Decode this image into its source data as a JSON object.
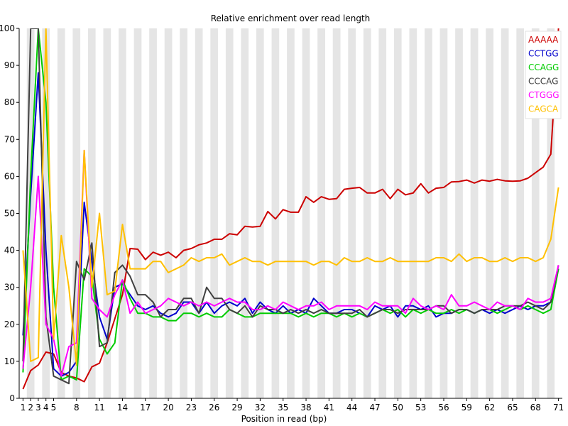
{
  "chart_data": {
    "type": "line",
    "title": "Relative enrichment over read length",
    "xlabel": "Position in read (bp)",
    "ylabel": "",
    "ylim": [
      0,
      100
    ],
    "y_ticks": [
      0,
      10,
      20,
      30,
      40,
      50,
      60,
      70,
      80,
      90,
      100
    ],
    "x_tick_labels": [
      "1",
      "2",
      "3",
      "4",
      "5",
      "8",
      "11",
      "14",
      "17",
      "20",
      "23",
      "26",
      "29",
      "32",
      "35",
      "38",
      "41",
      "44",
      "47",
      "50",
      "53",
      "56",
      "59",
      "62",
      "65",
      "68",
      "71"
    ],
    "x": [
      "1",
      "2",
      "3",
      "4",
      "5",
      "6",
      "7",
      "8",
      "9",
      "10",
      "11",
      "12",
      "13",
      "14",
      "15",
      "16",
      "17",
      "18",
      "19",
      "20",
      "21",
      "22",
      "23",
      "24",
      "25",
      "26",
      "27",
      "28",
      "29",
      "30",
      "31",
      "32",
      "33",
      "34",
      "35",
      "36",
      "37",
      "38",
      "39",
      "40",
      "41",
      "42",
      "43",
      "44",
      "45",
      "46",
      "47",
      "48",
      "49",
      "50",
      "51",
      "52",
      "53",
      "54",
      "55",
      "56",
      "57",
      "58",
      "59",
      "60",
      "61",
      "62",
      "63",
      "64",
      "65",
      "66",
      "67",
      "68",
      "69",
      "70",
      "71"
    ],
    "grid": "alternating vertical bands",
    "legend_position": "top-right",
    "series": [
      {
        "name": "AAAAA",
        "color": "#cc0000",
        "values": [
          2.5,
          7.5,
          9,
          12.5,
          12,
          7,
          6,
          5.5,
          4.5,
          8.5,
          9.5,
          15,
          21.5,
          28,
          40.5,
          40.3,
          37.5,
          39.5,
          38.7,
          39.5,
          38,
          40,
          40.5,
          41.5,
          42,
          43,
          43,
          44.5,
          44.2,
          46.5,
          46.3,
          46.5,
          50.5,
          48.5,
          51,
          50.3,
          50.3,
          54.5,
          53,
          54.5,
          53.8,
          54,
          56.5,
          56.8,
          57,
          55.5,
          55.5,
          56.5,
          54,
          56.5,
          55,
          55.5,
          58,
          55.5,
          56.8,
          57,
          58.5,
          58.6,
          59,
          58.2,
          59,
          58.7,
          59.2,
          58.8,
          58.7,
          58.8,
          59.5,
          61,
          62.5,
          66,
          100
        ]
      },
      {
        "name": "CCTGG",
        "color": "#0000cc",
        "values": [
          17,
          55,
          88,
          40,
          8,
          6,
          7,
          10,
          53,
          37,
          22,
          16,
          30,
          31,
          28,
          25,
          24,
          25,
          23,
          22,
          23,
          26,
          26,
          23,
          26,
          23,
          25,
          26,
          25,
          27,
          23,
          26,
          24,
          23,
          25,
          23,
          24,
          23,
          27,
          25,
          23,
          23,
          24,
          24,
          23,
          22,
          25,
          24,
          25,
          22,
          25,
          25,
          24,
          25,
          22,
          23,
          23,
          24,
          24,
          23,
          24,
          23,
          24,
          23,
          24,
          25,
          24,
          25,
          25,
          26,
          35
        ]
      },
      {
        "name": "CCAGG",
        "color": "#00cc00",
        "values": [
          7,
          60,
          100,
          80,
          30,
          5,
          6,
          5,
          35,
          33,
          16,
          12,
          15,
          32,
          27,
          23,
          23,
          22,
          22,
          21,
          21,
          23,
          23,
          22,
          23,
          22,
          22,
          24,
          23,
          22,
          22,
          23,
          23,
          23,
          23,
          23,
          22,
          23,
          22,
          23,
          23,
          22,
          23,
          22,
          23,
          22,
          23,
          24,
          23,
          24,
          22,
          24,
          23,
          24,
          23,
          23,
          24,
          23,
          24,
          23,
          24,
          24,
          23,
          24,
          25,
          24,
          25,
          24,
          23,
          24,
          35
        ]
      },
      {
        "name": "CCCAG",
        "color": "#404040",
        "values": [
          10,
          100,
          100,
          22,
          6,
          5,
          4,
          37,
          32,
          42,
          14,
          15,
          34,
          36,
          33,
          28,
          28,
          26,
          22,
          24,
          24,
          27,
          27,
          23,
          30,
          27,
          27,
          24,
          23,
          25,
          22,
          25,
          24,
          24,
          23,
          24,
          23,
          24,
          23,
          24,
          23,
          23,
          23,
          23,
          24,
          22,
          23,
          24,
          24,
          23,
          24,
          24,
          24,
          24,
          25,
          25,
          23,
          24,
          24,
          23,
          24,
          24,
          24,
          25,
          25,
          25,
          26,
          25,
          24,
          26,
          36
        ]
      },
      {
        "name": "CTGGG",
        "color": "#ff00ff",
        "values": [
          8,
          30,
          60,
          20,
          16,
          6,
          14,
          15,
          67,
          27,
          24,
          22,
          28,
          32,
          23,
          26,
          23,
          24,
          25,
          27,
          26,
          25,
          26,
          25,
          26,
          25,
          26,
          27,
          26,
          26,
          24,
          24,
          25,
          24,
          26,
          25,
          24,
          25,
          25,
          26,
          24,
          25,
          25,
          25,
          25,
          24,
          26,
          25,
          25,
          25,
          23,
          27,
          25,
          24,
          25,
          24,
          28,
          25,
          25,
          26,
          25,
          24,
          26,
          25,
          25,
          24,
          27,
          26,
          26,
          27,
          36
        ]
      },
      {
        "name": "CAGCA",
        "color": "#ffc000",
        "values": [
          40,
          10,
          11,
          100,
          16,
          44,
          30,
          9,
          67,
          30,
          50,
          28,
          29,
          47,
          35,
          35,
          35,
          37,
          37,
          34,
          35,
          36,
          38,
          37,
          38,
          38,
          39,
          36,
          37,
          38,
          37,
          37,
          36,
          37,
          37,
          37,
          37,
          37,
          36,
          37,
          37,
          36,
          38,
          37,
          37,
          38,
          37,
          37,
          38,
          37,
          37,
          37,
          37,
          37,
          38,
          38,
          37,
          39,
          37,
          38,
          38,
          37,
          37,
          38,
          37,
          38,
          38,
          37,
          38,
          43,
          57
        ]
      }
    ]
  }
}
